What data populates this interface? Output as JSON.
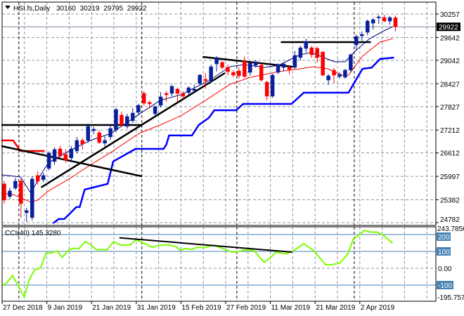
{
  "header": {
    "menu_icon": "triangle-down-icon",
    "symbol_label": "HSI.fs,Daily",
    "open": "30160",
    "high": "30219",
    "low": "29795",
    "close": "29922"
  },
  "colors": {
    "bull": "#0a1f9a",
    "bear": "#ff0000",
    "fast_ma": "#000080",
    "slow_ma": "#ff0000",
    "stop_line": "#0000ff",
    "trendline": "#000000",
    "cci": "#7cfc00",
    "cci_levels": "#4682b4",
    "grid": "#8a96a0"
  },
  "chart_data": {
    "type": "candlestick",
    "title": "HSI.fs,Daily",
    "grid": true,
    "price_axis": {
      "ylim": [
        24782,
        30257
      ],
      "ticks": [
        "30257",
        "29642",
        "29042",
        "28427",
        "27827",
        "27212",
        "26612",
        "25997",
        "25382",
        "24782"
      ],
      "current_price": "29922"
    },
    "date_ticks": [
      {
        "bar": 0,
        "label": "27 Dec 2018"
      },
      {
        "bar": 8,
        "label": "9 Jan 2019"
      },
      {
        "bar": 16,
        "label": "21 Jan 2019"
      },
      {
        "bar": 24,
        "label": "31 Jan 2019"
      },
      {
        "bar": 32,
        "label": "15 Feb 2019"
      },
      {
        "bar": 40,
        "label": "27 Feb 2019"
      },
      {
        "bar": 48,
        "label": "11 Mar 2019"
      },
      {
        "bar": 56,
        "label": "21 Mar 2019"
      },
      {
        "bar": 64,
        "label": "2 Apr 2019"
      }
    ],
    "month_separators": [
      3,
      25,
      42,
      63
    ],
    "candles_ohlc": [
      [
        25797,
        25880,
        25280,
        25373
      ],
      [
        25465,
        25700,
        25400,
        25613
      ],
      [
        25686,
        25960,
        25640,
        25871
      ],
      [
        25871,
        25930,
        24913,
        25281
      ],
      [
        25042,
        25170,
        24800,
        25097
      ],
      [
        24913,
        26000,
        24840,
        25926
      ],
      [
        26018,
        26130,
        25780,
        25871
      ],
      [
        25908,
        26090,
        25840,
        26018
      ],
      [
        26203,
        26650,
        26150,
        26608
      ],
      [
        26387,
        26760,
        26300,
        26700
      ],
      [
        26718,
        26800,
        26460,
        26534
      ],
      [
        26571,
        26700,
        26350,
        26424
      ],
      [
        26479,
        26790,
        26400,
        26718
      ],
      [
        26663,
        27030,
        26600,
        26939
      ],
      [
        26939,
        27000,
        26700,
        26847
      ],
      [
        26939,
        27380,
        26880,
        27308
      ],
      [
        27197,
        27300,
        27100,
        27234
      ],
      [
        27142,
        27200,
        26850,
        26884
      ],
      [
        26866,
        27050,
        26780,
        26939
      ],
      [
        27032,
        27350,
        26950,
        27253
      ],
      [
        27216,
        27790,
        27150,
        27751
      ],
      [
        27603,
        27700,
        27300,
        27345
      ],
      [
        27308,
        27640,
        27250,
        27566
      ],
      [
        27456,
        27780,
        27400,
        27658
      ],
      [
        27677,
        27900,
        27600,
        27861
      ],
      [
        28174,
        28230,
        27850,
        27916
      ],
      [
        27935,
        27990,
        27780,
        27898
      ],
      [
        27640,
        27860,
        27560,
        27824
      ],
      [
        27861,
        28210,
        27800,
        28082
      ],
      [
        28174,
        28240,
        27950,
        28138
      ],
      [
        28174,
        28400,
        28100,
        28359
      ],
      [
        28285,
        28330,
        27950,
        28174
      ],
      [
        28174,
        28230,
        28030,
        28101
      ],
      [
        28193,
        28360,
        28130,
        28322
      ],
      [
        28248,
        28400,
        28200,
        28285
      ],
      [
        28432,
        28680,
        28380,
        28654
      ],
      [
        28543,
        28700,
        28300,
        28506
      ],
      [
        28506,
        28930,
        28450,
        28875
      ],
      [
        28948,
        29150,
        28750,
        29114
      ],
      [
        28985,
        29030,
        28800,
        28856
      ],
      [
        28856,
        28930,
        28650,
        28746
      ],
      [
        28727,
        28780,
        28600,
        28654
      ],
      [
        28764,
        28850,
        28560,
        28635
      ],
      [
        29022,
        29140,
        28580,
        28617
      ],
      [
        28727,
        29000,
        28640,
        28967
      ],
      [
        28912,
        29050,
        28850,
        29004
      ],
      [
        28912,
        28960,
        28480,
        28525
      ],
      [
        28469,
        28500,
        27990,
        28101
      ],
      [
        28101,
        28690,
        28060,
        28654
      ],
      [
        28727,
        28960,
        28680,
        28930
      ],
      [
        28856,
        28990,
        28760,
        28948
      ],
      [
        28856,
        28900,
        28680,
        28801
      ],
      [
        28856,
        29290,
        28820,
        29170
      ],
      [
        29114,
        29420,
        29040,
        29372
      ],
      [
        29354,
        29610,
        29250,
        29538
      ],
      [
        29372,
        29420,
        29100,
        29188
      ],
      [
        29354,
        29400,
        28980,
        29114
      ],
      [
        29262,
        29280,
        28620,
        28654
      ],
      [
        28525,
        28680,
        28400,
        28635
      ],
      [
        28783,
        28840,
        28450,
        28654
      ],
      [
        28617,
        28730,
        28560,
        28672
      ],
      [
        28598,
        28820,
        28560,
        28783
      ],
      [
        28783,
        29220,
        28720,
        29188
      ],
      [
        29446,
        29720,
        29300,
        29667
      ],
      [
        29686,
        29800,
        29550,
        29723
      ],
      [
        29778,
        30110,
        29700,
        30073
      ],
      [
        30017,
        30150,
        29850,
        30110
      ],
      [
        30165,
        30230,
        30000,
        30183
      ],
      [
        30165,
        30240,
        30040,
        30073
      ],
      [
        30073,
        30210,
        29980,
        30165
      ],
      [
        30160,
        30219,
        29795,
        29922
      ]
    ],
    "overlays": {
      "fast_ma": [
        [
          -0.5,
          26037
        ],
        [
          2.9,
          25981
        ],
        [
          4.75,
          25557
        ],
        [
          6.6,
          26055
        ],
        [
          7.9,
          26350
        ],
        [
          11.6,
          26663
        ],
        [
          15.4,
          26939
        ],
        [
          19.1,
          27124
        ],
        [
          24.1,
          27622
        ],
        [
          27.9,
          27990
        ],
        [
          31.6,
          28138
        ],
        [
          36.6,
          28506
        ],
        [
          40.4,
          28875
        ],
        [
          42.9,
          28930
        ],
        [
          46.6,
          28856
        ],
        [
          49.1,
          28912
        ],
        [
          52.9,
          29188
        ],
        [
          54.75,
          29243
        ],
        [
          56.6,
          29151
        ],
        [
          59.1,
          29004
        ],
        [
          61,
          29004
        ],
        [
          62.9,
          29299
        ],
        [
          65.4,
          29612
        ],
        [
          67.9,
          29815
        ],
        [
          69.5,
          29925
        ]
      ],
      "slow_ma": [
        [
          -0.5,
          25557
        ],
        [
          1.6,
          25521
        ],
        [
          4.75,
          25318
        ],
        [
          6,
          25373
        ],
        [
          7.9,
          25613
        ],
        [
          11.6,
          25926
        ],
        [
          15.4,
          26295
        ],
        [
          19.1,
          26627
        ],
        [
          24.1,
          27124
        ],
        [
          27.9,
          27345
        ],
        [
          31.6,
          27585
        ],
        [
          36.6,
          28046
        ],
        [
          40.4,
          28414
        ],
        [
          44.1,
          28598
        ],
        [
          49.1,
          28746
        ],
        [
          52.9,
          28820
        ],
        [
          55.4,
          28875
        ],
        [
          57.9,
          28820
        ],
        [
          60.4,
          28654
        ],
        [
          61.6,
          28654
        ],
        [
          64.1,
          29151
        ],
        [
          67.25,
          29520
        ],
        [
          69.5,
          29612
        ]
      ],
      "upper_band_red": [
        [
          -0.5,
          26939
        ],
        [
          1.6,
          26939
        ],
        [
          2.9,
          26663
        ],
        [
          7.25,
          26663
        ]
      ],
      "stop_line_blue": [
        [
          8.75,
          24765
        ],
        [
          9.75,
          24876
        ],
        [
          10.75,
          24876
        ],
        [
          12.9,
          25189
        ],
        [
          13.5,
          25189
        ],
        [
          14.4,
          25650
        ],
        [
          18.5,
          25797
        ],
        [
          19.5,
          26387
        ],
        [
          23.5,
          26718
        ],
        [
          28.5,
          26718
        ],
        [
          29,
          26829
        ],
        [
          29.5,
          27069
        ],
        [
          33.6,
          27069
        ],
        [
          34.8,
          27345
        ],
        [
          36.6,
          27530
        ],
        [
          37.6,
          27732
        ],
        [
          41.5,
          27732
        ],
        [
          42.75,
          27898
        ],
        [
          51.4,
          27898
        ],
        [
          53.6,
          28193
        ],
        [
          61.6,
          28193
        ],
        [
          64.1,
          28820
        ],
        [
          65.75,
          28850
        ],
        [
          67.25,
          29078
        ],
        [
          69.75,
          29114
        ]
      ],
      "trendlines": [
        [
          [
            -0.5,
            27345
          ],
          [
            24.75,
            27345
          ]
        ],
        [
          [
            -0.5,
            26792
          ],
          [
            24.6,
            25999
          ]
        ],
        [
          [
            6.6,
            25705
          ],
          [
            39.5,
            28709
          ]
        ],
        [
          [
            35.5,
            29133
          ],
          [
            51.6,
            28875
          ]
        ],
        [
          [
            49.5,
            29520
          ],
          [
            65.6,
            29520
          ]
        ]
      ]
    },
    "cci": {
      "label": "CCI(40) 145.3280",
      "ylim": [
        -195.757,
        243.7856
      ],
      "top_label": "243.7856",
      "bottom_label": "-195.757",
      "levels": [
        "200",
        "100",
        "-100"
      ],
      "zero_label": "0.00",
      "values": [
        [
          -0.5,
          -104
        ],
        [
          0.4,
          -88
        ],
        [
          1.5,
          -43
        ],
        [
          3.6,
          -171
        ],
        [
          4.4,
          -74
        ],
        [
          5.4,
          -11
        ],
        [
          6.5,
          3
        ],
        [
          7.5,
          90
        ],
        [
          8.4,
          90
        ],
        [
          9.4,
          103
        ],
        [
          10.4,
          65
        ],
        [
          11.5,
          107
        ],
        [
          12.25,
          118
        ],
        [
          13.4,
          118
        ],
        [
          14.5,
          158
        ],
        [
          15.4,
          142
        ],
        [
          16.5,
          110
        ],
        [
          18.4,
          110
        ],
        [
          19.6,
          158
        ],
        [
          20.75,
          138
        ],
        [
          22.5,
          138
        ],
        [
          23.6,
          169
        ],
        [
          24.9,
          151
        ],
        [
          26.5,
          124
        ],
        [
          27.5,
          135
        ],
        [
          29.4,
          139
        ],
        [
          30.75,
          128
        ],
        [
          31.5,
          107
        ],
        [
          32.5,
          117
        ],
        [
          33.6,
          112
        ],
        [
          34.6,
          125
        ],
        [
          35.75,
          121
        ],
        [
          37.5,
          138
        ],
        [
          39.1,
          117
        ],
        [
          40.6,
          97
        ],
        [
          41.75,
          97
        ],
        [
          42.75,
          107
        ],
        [
          44.6,
          107
        ],
        [
          46.5,
          35
        ],
        [
          47.5,
          58
        ],
        [
          48.6,
          96
        ],
        [
          50.4,
          85
        ],
        [
          51.75,
          104
        ],
        [
          53.6,
          146
        ],
        [
          55.4,
          104
        ],
        [
          57.5,
          21
        ],
        [
          58.6,
          21
        ],
        [
          60.1,
          31
        ],
        [
          61.5,
          86
        ],
        [
          62.5,
          176
        ],
        [
          63.25,
          190
        ],
        [
          64.4,
          224
        ],
        [
          65.4,
          215
        ],
        [
          66.75,
          214
        ],
        [
          67.75,
          197
        ],
        [
          69.5,
          149
        ]
      ],
      "trendline": [
        [
          20.6,
          181
        ],
        [
          51.5,
          96
        ]
      ]
    }
  }
}
